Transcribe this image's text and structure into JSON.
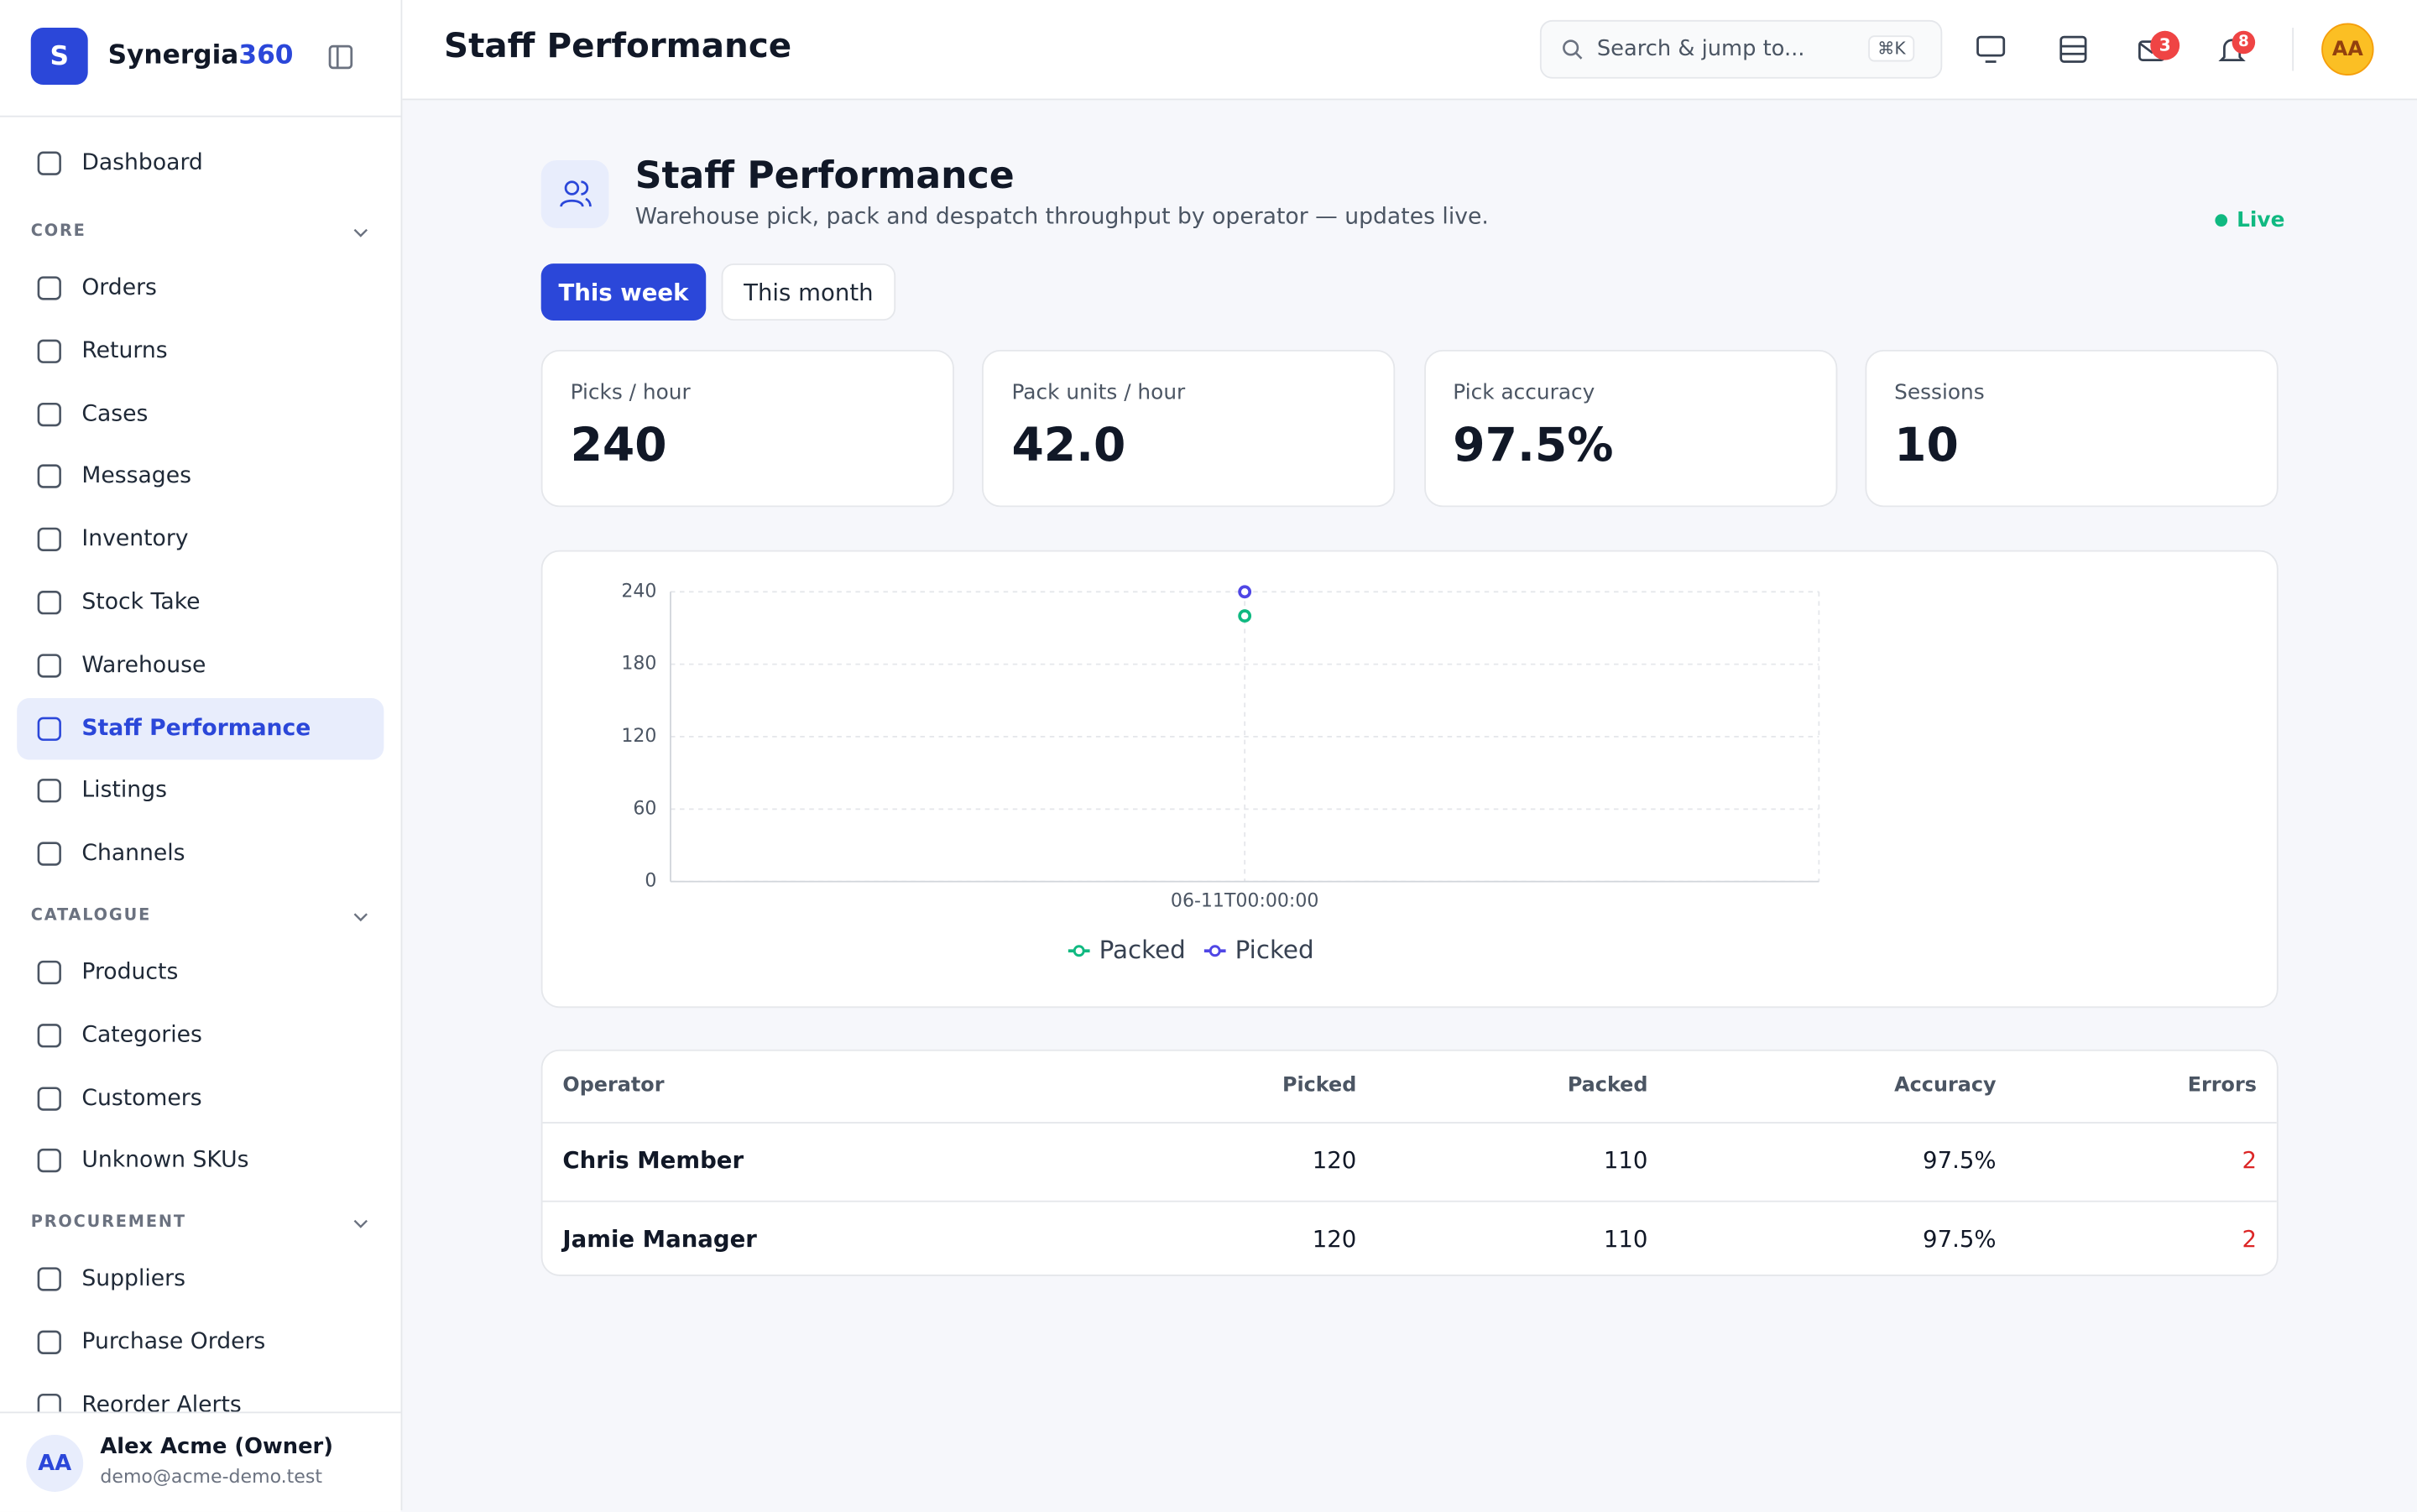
{
  "sidebar": {
    "brand_initial": "S",
    "brand_name": "Synergia",
    "brand_suffix": "360",
    "top_item": "Dashboard",
    "sections": [
      {
        "title": "CORE",
        "items": [
          "Orders",
          "Returns",
          "Cases",
          "Messages",
          "Inventory",
          "Stock Take",
          "Warehouse",
          "Staff Performance",
          "Listings",
          "Channels"
        ]
      },
      {
        "title": "CATALOGUE",
        "items": [
          "Products",
          "Categories",
          "Customers",
          "Unknown SKUs"
        ]
      },
      {
        "title": "PROCUREMENT",
        "items": [
          "Suppliers",
          "Purchase Orders",
          "Reorder Alerts"
        ]
      }
    ],
    "user": {
      "initials": "AA",
      "name": "Alex Acme (Owner)",
      "email": "demo@acme-demo.test"
    }
  },
  "header": {
    "title": "Staff Performance",
    "search_placeholder": "Search & jump to...",
    "shortcut": "⌘K",
    "messages_badge": "3",
    "notifications_badge": "8",
    "avatar": "AA"
  },
  "page": {
    "title": "Staff Performance",
    "subtitle": "Warehouse pick, pack and despatch throughput by operator — updates live.",
    "status": "Live",
    "tabs": [
      "This week",
      "This month"
    ]
  },
  "stats": [
    {
      "label": "Picks / hour",
      "value": "240"
    },
    {
      "label": "Pack units / hour",
      "value": "42.0"
    },
    {
      "label": "Pick accuracy",
      "value": "97.5%"
    },
    {
      "label": "Sessions",
      "value": "10"
    }
  ],
  "chart_data": {
    "type": "line",
    "x": [
      "06-11T00:00:00"
    ],
    "series": [
      {
        "name": "Packed",
        "color": "#10b981",
        "values": [
          220
        ]
      },
      {
        "name": "Picked",
        "color": "#4f46e5",
        "values": [
          240
        ]
      }
    ],
    "ylim": [
      0,
      240
    ],
    "yticks": [
      0,
      60,
      120,
      180,
      240
    ],
    "grid": true,
    "legend": "bottom"
  },
  "table": {
    "columns": [
      "Operator",
      "Picked",
      "Packed",
      "Accuracy",
      "Errors"
    ],
    "rows": [
      [
        "Chris Member",
        120,
        110,
        "97.5%",
        2
      ],
      [
        "Jamie Manager",
        120,
        110,
        "97.5%",
        2
      ]
    ]
  }
}
